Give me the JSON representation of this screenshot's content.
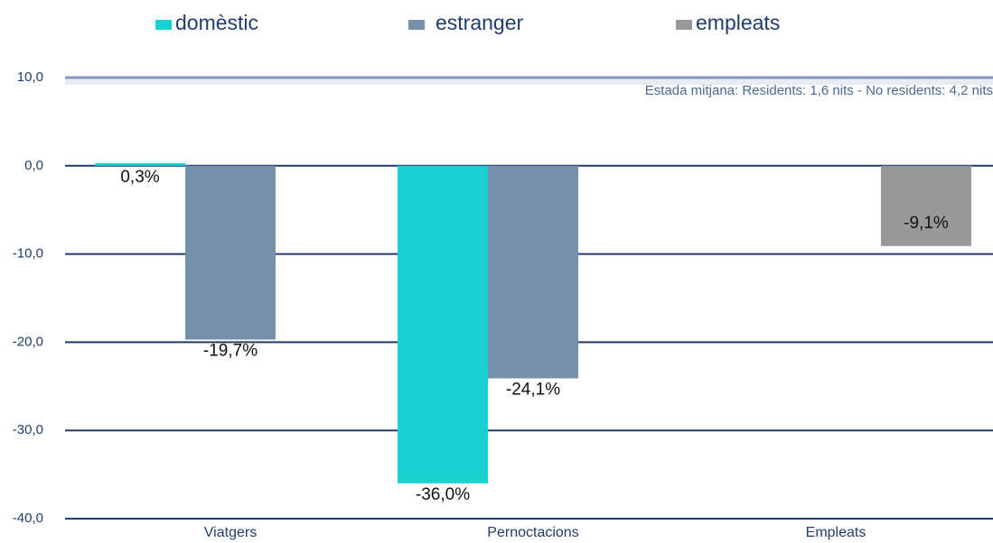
{
  "chart_data": {
    "type": "bar",
    "annotation": "Estada mitjana: Residents: 1,6 nits - No residents: 4,2 nits",
    "categories": [
      "Viatgers",
      "Pernoctacions",
      "Empleats"
    ],
    "series": [
      {
        "name": "domèstic",
        "color": "#1ad1d1",
        "values": [
          0.3,
          -36.0,
          null
        ],
        "value_labels": [
          "0,3%",
          "-36,0%",
          null
        ]
      },
      {
        "name": "estranger",
        "color": "#7891ab",
        "values": [
          -19.7,
          -24.1,
          null
        ],
        "value_labels": [
          "-19,7%",
          "-24,1%",
          null
        ]
      },
      {
        "name": "empleats",
        "color": "#999999",
        "values": [
          null,
          null,
          -9.1
        ],
        "value_labels": [
          null,
          null,
          "-9,1%"
        ]
      }
    ],
    "ylim": [
      -40,
      10
    ],
    "yticks": [
      {
        "value": -40,
        "label": "-40,0"
      },
      {
        "value": -30,
        "label": "-30,0"
      },
      {
        "value": -20,
        "label": "-20,0"
      },
      {
        "value": -10,
        "label": "-10,0"
      },
      {
        "value": 0,
        "label": "0,0"
      },
      {
        "value": 10,
        "label": "10,0"
      }
    ],
    "grid": true,
    "legend": "top"
  }
}
